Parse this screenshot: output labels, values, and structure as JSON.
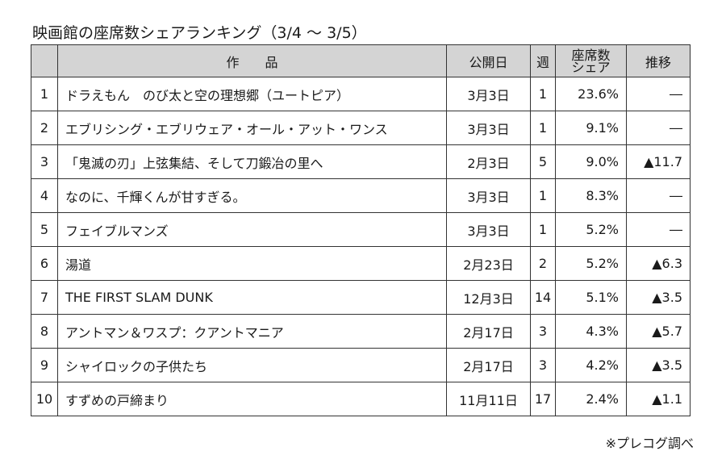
{
  "title": "映画館の座席数シェアランキング（3/4 ～ 3/5）",
  "headers": {
    "no": "",
    "title": "作　　品",
    "release": "公開日",
    "weeks": "週",
    "share_line1": "座席数",
    "share_line2": "シェア",
    "trend": "推移"
  },
  "rows": [
    {
      "no": "1",
      "title": "ドラえもん　のび太と空の理想郷（ユートピア）",
      "release": "3月3日",
      "weeks": "1",
      "share": "23.6%",
      "trend": "―"
    },
    {
      "no": "2",
      "title": "エブリシング・エブリウェア・オール・アット・ワンス",
      "release": "3月3日",
      "weeks": "1",
      "share": "9.1%",
      "trend": "―"
    },
    {
      "no": "3",
      "title": "「鬼滅の刃」上弦集結、そして刀鍛冶の里へ",
      "release": "2月3日",
      "weeks": "5",
      "share": "9.0%",
      "trend": "▲11.7"
    },
    {
      "no": "4",
      "title": "なのに、千輝くんが甘すぎる。",
      "release": "3月3日",
      "weeks": "1",
      "share": "8.3%",
      "trend": "―"
    },
    {
      "no": "5",
      "title": "フェイブルマンズ",
      "release": "3月3日",
      "weeks": "1",
      "share": "5.2%",
      "trend": "―"
    },
    {
      "no": "6",
      "title": "湯道",
      "release": "2月23日",
      "weeks": "2",
      "share": "5.2%",
      "trend": "▲6.3"
    },
    {
      "no": "7",
      "title": "THE FIRST SLAM DUNK",
      "release": "12月3日",
      "weeks": "14",
      "share": "5.1%",
      "trend": "▲3.5"
    },
    {
      "no": "8",
      "title": "アントマン＆ワスプ：クアントマニア",
      "release": "2月17日",
      "weeks": "3",
      "share": "4.3%",
      "trend": "▲5.7"
    },
    {
      "no": "9",
      "title": "シャイロックの子供たち",
      "release": "2月17日",
      "weeks": "3",
      "share": "4.2%",
      "trend": "▲3.5"
    },
    {
      "no": "10",
      "title": "すずめの戸締まり",
      "release": "11月11日",
      "weeks": "17",
      "share": "2.4%",
      "trend": "▲1.1"
    }
  ],
  "note": "※プレコグ調べ"
}
